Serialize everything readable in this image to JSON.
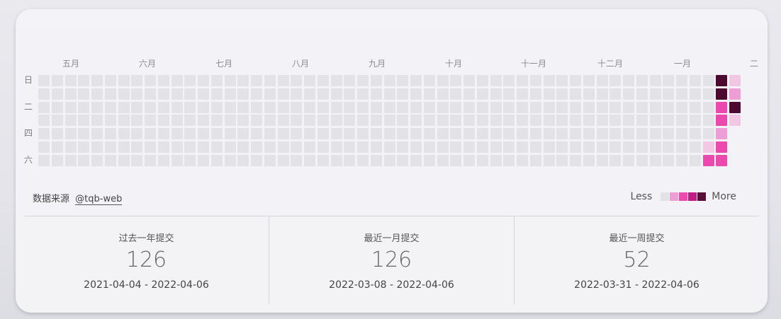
{
  "months": [
    "五月",
    "六月",
    "七月",
    "八月",
    "九月",
    "十月",
    "十一月",
    "十二月",
    "一月",
    "二"
  ],
  "weekday_labels": [
    "日",
    "二",
    "四",
    "六"
  ],
  "heatmap": {
    "columns": 53,
    "rows": 7,
    "empty_color": "#e2e2e7",
    "level_colors": [
      "#e2e2e7",
      "#f2c7e4",
      "#ee9dd6",
      "#ea4aad",
      "#4d0a31"
    ],
    "active_cells": [
      {
        "col": 51,
        "row": 0,
        "level": 4
      },
      {
        "col": 51,
        "row": 1,
        "level": 4
      },
      {
        "col": 51,
        "row": 2,
        "level": 3
      },
      {
        "col": 51,
        "row": 3,
        "level": 3
      },
      {
        "col": 51,
        "row": 4,
        "level": 2
      },
      {
        "col": 51,
        "row": 5,
        "level": 3
      },
      {
        "col": 51,
        "row": 6,
        "level": 3
      },
      {
        "col": 50,
        "row": 5,
        "level": 1
      },
      {
        "col": 50,
        "row": 6,
        "level": 3
      },
      {
        "col": 52,
        "row": 0,
        "level": 1
      },
      {
        "col": 52,
        "row": 1,
        "level": 2
      },
      {
        "col": 52,
        "row": 2,
        "level": 4
      },
      {
        "col": 52,
        "row": 3,
        "level": 1
      }
    ]
  },
  "source": {
    "prefix": "数据来源",
    "link": "@tqb-web"
  },
  "legend": {
    "less": "Less",
    "more": "More",
    "colors": [
      "#e2e2e7",
      "#ee9dd6",
      "#ea4aad",
      "#c41a86",
      "#5a0e3a"
    ]
  },
  "stats": [
    {
      "title": "过去一年提交",
      "value": "126",
      "range": "2021-04-04 - 2022-04-06"
    },
    {
      "title": "最近一月提交",
      "value": "126",
      "range": "2022-03-08 - 2022-04-06"
    },
    {
      "title": "最近一周提交",
      "value": "52",
      "range": "2022-03-31 - 2022-04-06"
    }
  ]
}
